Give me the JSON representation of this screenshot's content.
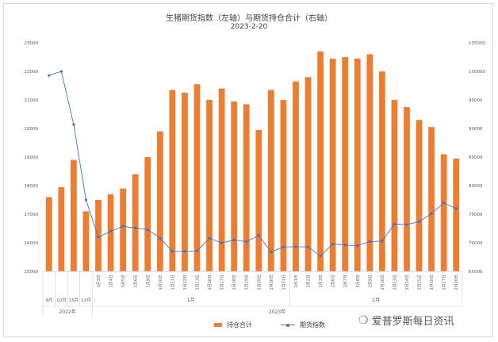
{
  "chart_data": {
    "type": "bar+line",
    "title": "生猪期货指数（左轴）与期货持仓合计（右轴）",
    "subtitle": "2023-2-20",
    "left_axis": {
      "ticks": [
        15000,
        16000,
        17000,
        18000,
        19000,
        20000,
        21000,
        22000,
        23000
      ],
      "ylim": [
        15000,
        23000
      ]
    },
    "right_axis": {
      "ticks": [
        65000,
        70000,
        75000,
        80000,
        85000,
        90000,
        95000,
        100000,
        105000
      ],
      "ylim": [
        65000,
        105000
      ]
    },
    "categories": [
      "9月",
      "10月",
      "11月",
      "12月",
      "1月3日",
      "1月4日",
      "1月5日",
      "1月6日",
      "1月9日",
      "1月10日",
      "1月11日",
      "1月12日",
      "1月13日",
      "1月16日",
      "1月17日",
      "1月18日",
      "1月19日",
      "1月20日",
      "1月30日",
      "1月31日",
      "2月1日",
      "2月2日",
      "2月3日",
      "2月6日",
      "2月7日",
      "2月8日",
      "2月9日",
      "2月10日",
      "2月13日",
      "2月14日",
      "2月15日",
      "2月16日",
      "2月17日",
      "2月20日"
    ],
    "groups_month": [
      {
        "label": "9月",
        "from": 0,
        "to": 0
      },
      {
        "label": "10月",
        "from": 1,
        "to": 1
      },
      {
        "label": "11月",
        "from": 2,
        "to": 2
      },
      {
        "label": "12月",
        "from": 3,
        "to": 3
      },
      {
        "label": "1月",
        "from": 4,
        "to": 19
      },
      {
        "label": "2月",
        "from": 20,
        "to": 33
      }
    ],
    "groups_year": [
      {
        "label": "2022年",
        "from": 0,
        "to": 3
      },
      {
        "label": "2023年",
        "from": 4,
        "to": 33
      }
    ],
    "series": [
      {
        "name": "持仓合计",
        "kind": "bar",
        "axis": "left",
        "color": "#ED7D31",
        "values": [
          17600,
          17950,
          18900,
          17100,
          17500,
          17700,
          17900,
          18400,
          19000,
          19900,
          21350,
          21250,
          21550,
          21000,
          21400,
          20950,
          20850,
          19950,
          21350,
          21000,
          21650,
          21800,
          22700,
          22450,
          22500,
          22450,
          22600,
          22000,
          21000,
          20750,
          20300,
          20050,
          19100,
          18950
        ]
      },
      {
        "name": "期货指数",
        "kind": "line",
        "axis": "right",
        "color": "#4472C4",
        "values": [
          99300,
          100000,
          90700,
          77500,
          71000,
          72000,
          72900,
          72600,
          72300,
          70800,
          68500,
          68500,
          68600,
          70800,
          70000,
          70500,
          70200,
          71300,
          68400,
          69300,
          69300,
          69300,
          67700,
          69800,
          69600,
          69500,
          70200,
          70300,
          73300,
          73200,
          73700,
          75100,
          77000,
          76000
        ]
      }
    ],
    "grid": false,
    "legend_position": "bottom"
  },
  "watermark": {
    "icon": "wechat-icon",
    "text": "爱普罗斯每日资讯"
  }
}
